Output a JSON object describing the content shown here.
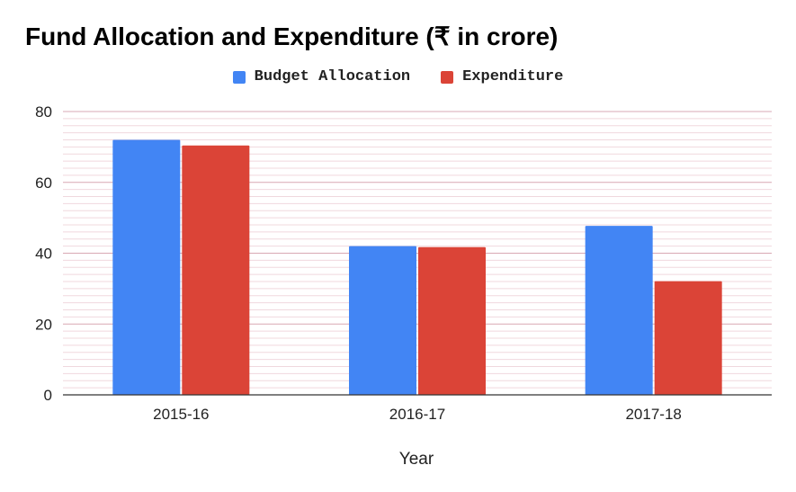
{
  "chart_data": {
    "type": "bar",
    "title": "Fund Allocation and Expenditure (₹ in crore)",
    "xlabel": "Year",
    "ylabel": "",
    "categories": [
      "2015-16",
      "2016-17",
      "2017-18"
    ],
    "series": [
      {
        "name": "Budget Allocation",
        "color": "#4285F4",
        "values": [
          72,
          42,
          47.7
        ]
      },
      {
        "name": "Expenditure",
        "color": "#DB4437",
        "values": [
          70.4,
          41.7,
          32.1
        ]
      }
    ],
    "ylim": [
      0,
      80
    ],
    "yticks": [
      0,
      20,
      40,
      60,
      80
    ],
    "grid": true,
    "legend_position": "top"
  }
}
